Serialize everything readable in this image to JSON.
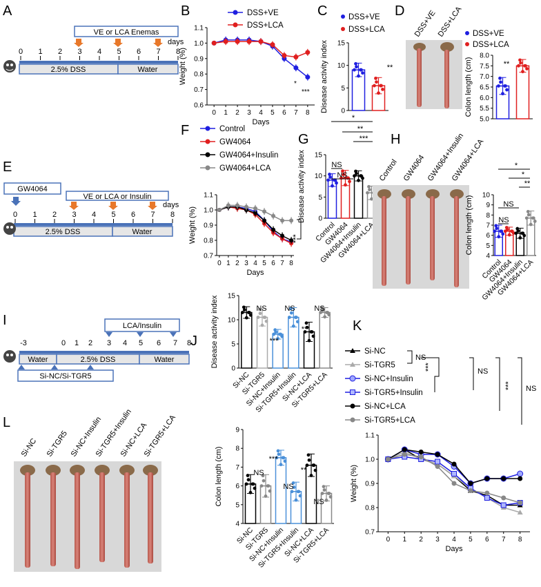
{
  "panels": {
    "A": {
      "letter": "A",
      "enema_label": "VE or LCA Enemas",
      "days_label": "days",
      "ticks": [
        "0",
        "1",
        "2",
        "3",
        "4",
        "5",
        "6",
        "7",
        "8"
      ],
      "dss_label": "2.5% DSS",
      "water_label": "Water"
    },
    "B": {
      "letter": "B",
      "ylabel": "Weight (%)",
      "xlabel": "Days",
      "stars_a": "*",
      "stars_b": "***"
    },
    "C": {
      "letter": "C",
      "ylabel": "Disease activity index",
      "stars": "**"
    },
    "D": {
      "letter": "D",
      "photo_labels": [
        "DSS+VE",
        "DSS+LCA"
      ],
      "ylabel": "Colon length (cm)",
      "stars": "**"
    },
    "E": {
      "letter": "E",
      "gw_label": "GW4064",
      "treat_label": "VE or LCA or Insulin",
      "days_label": "days",
      "ticks": [
        "0",
        "1",
        "2",
        "3",
        "4",
        "5",
        "6",
        "7",
        "8"
      ],
      "dss_label": "2.5% DSS",
      "water_label": "Water"
    },
    "F": {
      "letter": "F",
      "ylabel": "Weight (%)",
      "xlabel": "Days",
      "stars": "***"
    },
    "G": {
      "letter": "G",
      "ylabel": "Disease activity index",
      "sig": [
        "*",
        "**",
        "***",
        "NS",
        "NS"
      ]
    },
    "H": {
      "letter": "H",
      "photo_labels": [
        "Control",
        "GW4064",
        "GW4064+Insulin",
        "GW4064+LCA"
      ],
      "ylabel": "Colon length (cm)",
      "sig": [
        "*",
        "*",
        "**",
        "NS",
        "NS"
      ]
    },
    "I": {
      "letter": "I",
      "treat_label": "LCA/Insulin",
      "ticks": [
        "-3",
        "0",
        "1",
        "2",
        "3",
        "4",
        "5",
        "6",
        "7",
        "8"
      ],
      "water_label": "Water",
      "dss_label": "2.5% DSS",
      "water2_label": "Water",
      "si_label": "Si-NC/Si-TGR5"
    },
    "J": {
      "letter": "J",
      "ylabel": "Disease activity index",
      "sig": [
        "NS",
        "***",
        "NS",
        "**",
        "NS"
      ]
    },
    "K": {
      "letter": "K",
      "ylabel": "Weight (%)",
      "xlabel": "Days",
      "sig": [
        "NS",
        "***",
        "NS",
        "***",
        "NS"
      ]
    },
    "L": {
      "letter": "L",
      "photo_labels": [
        "Si-NC",
        "Si-TGR5",
        "Si-NC+Insulin",
        "Si-TGR5+Insulin",
        "Si-NC+LCA",
        "Si-TGR5+LCA"
      ],
      "ylabel": "Colon length (cm)",
      "sig": [
        "NS",
        "***",
        "NS",
        "**",
        "NS"
      ]
    }
  },
  "colors": {
    "blue": "#1f1fe0",
    "red": "#e01f1f",
    "black": "#000000",
    "gray": "#888888",
    "lightgray": "#aaaaaa",
    "lightblue": "#4a90d9",
    "arrow": "#e8782a",
    "schemefill": "#e6e6e6",
    "schemeline": "#4a72b8"
  },
  "chart_data": [
    {
      "id": "B",
      "type": "line",
      "title": "",
      "xlabel": "Days",
      "ylabel": "Weight (%)",
      "x": [
        0,
        1,
        2,
        3,
        4,
        5,
        6,
        7,
        8
      ],
      "xlim": [
        0,
        8
      ],
      "ylim": [
        0.6,
        1.1
      ],
      "yticks": [
        "0.6",
        "0.7",
        "0.8",
        "0.9",
        "1.0",
        "1.1"
      ],
      "legend": [
        "DSS+VE",
        "DSS+LCA"
      ],
      "series": [
        {
          "name": "DSS+VE",
          "color": "#1f1fe0",
          "values": [
            1.0,
            1.02,
            1.02,
            1.02,
            1.01,
            0.98,
            0.9,
            0.84,
            0.78
          ]
        },
        {
          "name": "DSS+LCA",
          "color": "#e01f1f",
          "values": [
            1.0,
            1.01,
            1.01,
            1.01,
            1.01,
            0.99,
            0.92,
            0.91,
            0.94
          ]
        }
      ]
    },
    {
      "id": "C",
      "type": "bar",
      "ylabel": "Disease activity index",
      "ylim": [
        0,
        15
      ],
      "yticks": [
        "0",
        "5",
        "10",
        "15"
      ],
      "categories": [
        "DSS+VE",
        "DSS+LCA"
      ],
      "legend": [
        "DSS+VE",
        "DSS+LCA"
      ],
      "series": [
        {
          "name": "Disease activity index",
          "values": [
            9,
            5.5
          ],
          "errors": [
            1.5,
            1.8
          ]
        }
      ]
    },
    {
      "id": "D",
      "type": "bar",
      "ylabel": "Colon length (cm)",
      "ylim": [
        5.0,
        8.0
      ],
      "yticks": [
        "5.0",
        "5.5",
        "6.0",
        "6.5",
        "7.0",
        "7.5",
        "8.0"
      ],
      "categories": [
        "DSS+VE",
        "DSS+LCA"
      ],
      "legend": [
        "DSS+VE",
        "DSS+LCA"
      ],
      "series": [
        {
          "name": "Colon length",
          "values": [
            6.55,
            7.5
          ],
          "errors": [
            0.4,
            0.3
          ]
        }
      ]
    },
    {
      "id": "F",
      "type": "line",
      "xlabel": "Days",
      "ylabel": "Weight (%)",
      "x": [
        0,
        1,
        2,
        3,
        4,
        5,
        6,
        7,
        8
      ],
      "xlim": [
        0,
        8
      ],
      "ylim": [
        0.7,
        1.1
      ],
      "yticks": [
        "0.7",
        "0.8",
        "0.9",
        "1.0",
        "1.1"
      ],
      "legend": [
        "Control",
        "GW4064",
        "GW4064+Insulin",
        "GW4064+LCA"
      ],
      "series": [
        {
          "name": "Control",
          "color": "#1f1fe0",
          "values": [
            1.0,
            1.02,
            1.02,
            1.01,
            0.99,
            0.93,
            0.86,
            0.81,
            0.79
          ]
        },
        {
          "name": "GW4064",
          "color": "#e01f1f",
          "values": [
            1.0,
            1.02,
            1.01,
            1.0,
            0.97,
            0.91,
            0.85,
            0.81,
            0.78
          ]
        },
        {
          "name": "GW4064+Insulin",
          "color": "#000000",
          "values": [
            1.0,
            1.02,
            1.02,
            1.0,
            0.98,
            0.93,
            0.87,
            0.83,
            0.8
          ]
        },
        {
          "name": "GW4064+LCA",
          "color": "#888888",
          "values": [
            1.0,
            1.03,
            1.03,
            1.02,
            1.01,
            0.99,
            0.96,
            0.93,
            0.93
          ]
        }
      ]
    },
    {
      "id": "G",
      "type": "bar",
      "ylabel": "Disease activity index",
      "ylim": [
        0,
        15
      ],
      "yticks": [
        "0",
        "5",
        "10",
        "15"
      ],
      "categories": [
        "Control",
        "GW4064",
        "GW4064+Insulin",
        "GW4064+LCA"
      ],
      "series": [
        {
          "name": "Disease activity index",
          "values": [
            9,
            9.5,
            10,
            6
          ],
          "errors": [
            1.5,
            1.8,
            1.2,
            1.6
          ]
        }
      ]
    },
    {
      "id": "H",
      "type": "bar",
      "ylabel": "Colon length (cm)",
      "ylim": [
        4,
        10
      ],
      "yticks": [
        "4",
        "5",
        "6",
        "7",
        "8",
        "9",
        "10"
      ],
      "categories": [
        "Control",
        "GW4064",
        "GW4064+Insulin",
        "GW4064+LCA"
      ],
      "series": [
        {
          "name": "Colon length",
          "values": [
            6.4,
            6.4,
            6.2,
            7.7
          ],
          "errors": [
            0.6,
            0.4,
            0.5,
            0.7
          ]
        }
      ]
    },
    {
      "id": "J",
      "type": "bar",
      "ylabel": "Disease activity index",
      "ylim": [
        0,
        15
      ],
      "yticks": [
        "0",
        "5",
        "10",
        "15"
      ],
      "categories": [
        "Si-NC",
        "Si-TGR5",
        "Si-NC+Insulin",
        "Si-TGR5+Insulin",
        "Si-NC+LCA",
        "Si-TGR5+LCA"
      ],
      "series": [
        {
          "name": "Disease activity index",
          "values": [
            11.5,
            10.5,
            7,
            10.5,
            7.5,
            11.5
          ],
          "errors": [
            1.2,
            1.8,
            1.0,
            2.0,
            2.0,
            1.0
          ]
        }
      ]
    },
    {
      "id": "K",
      "type": "line",
      "xlabel": "Days",
      "ylabel": "Weight (%)",
      "x": [
        0,
        1,
        2,
        3,
        4,
        5,
        6,
        7,
        8
      ],
      "xlim": [
        0,
        8
      ],
      "ylim": [
        0.7,
        1.1
      ],
      "yticks": [
        "0.7",
        "0.8",
        "0.9",
        "1.0",
        "1.1"
      ],
      "legend": [
        "Si-NC",
        "Si-TGR5",
        "Si-NC+Insulin",
        "Si-TGR5+Insulin",
        "Si-NC+LCA",
        "Si-TGR5+LCA"
      ],
      "series": [
        {
          "name": "Si-NC",
          "color": "#000000",
          "values": [
            1.0,
            1.04,
            1.0,
            0.98,
            0.93,
            0.87,
            0.85,
            0.81,
            0.81
          ]
        },
        {
          "name": "Si-TGR5",
          "color": "#aaaaaa",
          "values": [
            1.0,
            1.03,
            1.0,
            0.98,
            0.93,
            0.88,
            0.84,
            0.8,
            0.78
          ]
        },
        {
          "name": "Si-NC+Insulin",
          "color": "#1f1fe0",
          "values": [
            1.0,
            1.04,
            1.02,
            1.02,
            0.97,
            0.9,
            0.92,
            0.92,
            0.94
          ]
        },
        {
          "name": "Si-TGR5+Insulin",
          "color": "#1f1fe0",
          "values": [
            1.0,
            1.01,
            1.0,
            0.99,
            0.94,
            0.88,
            0.84,
            0.81,
            0.82
          ]
        },
        {
          "name": "Si-NC+LCA",
          "color": "#000000",
          "values": [
            1.0,
            1.04,
            1.03,
            1.02,
            0.98,
            0.9,
            0.92,
            0.92,
            0.92
          ]
        },
        {
          "name": "Si-TGR5+LCA",
          "color": "#888888",
          "values": [
            1.0,
            1.02,
            1.01,
            0.97,
            0.9,
            0.87,
            0.86,
            0.84,
            0.82
          ]
        }
      ]
    },
    {
      "id": "L",
      "type": "bar",
      "ylabel": "Colon length (cm)",
      "ylim": [
        4,
        9
      ],
      "yticks": [
        "4",
        "5",
        "6",
        "7",
        "8",
        "9"
      ],
      "categories": [
        "Si-NC",
        "Si-TGR5",
        "Si-NC+Insulin",
        "Si-TGR5+Insulin",
        "Si-NC+LCA",
        "Si-TGR5+LCA"
      ],
      "series": [
        {
          "name": "Colon length",
          "values": [
            6.1,
            6.0,
            7.5,
            5.7,
            7.1,
            5.6
          ],
          "errors": [
            0.5,
            0.6,
            0.4,
            0.5,
            0.6,
            0.4
          ]
        }
      ]
    }
  ]
}
